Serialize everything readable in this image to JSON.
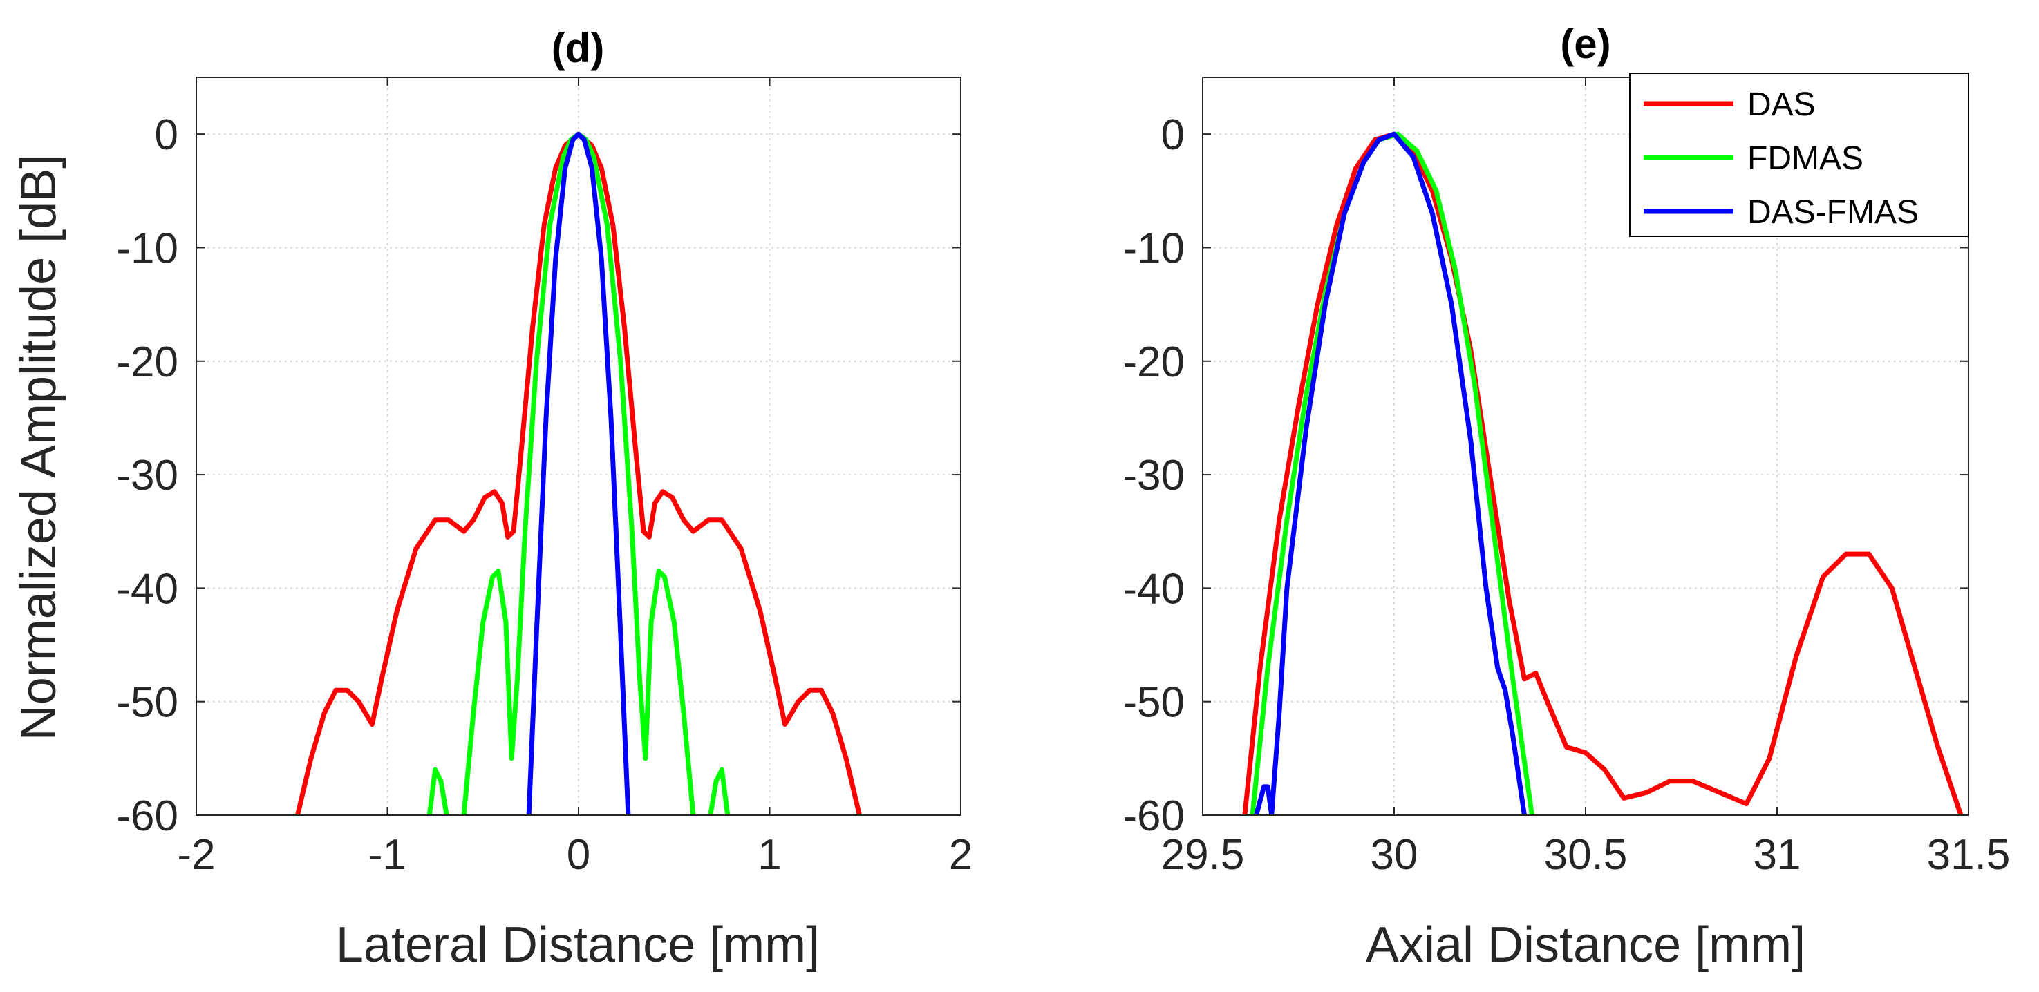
{
  "chart_data": [
    {
      "type": "line",
      "title": "(d)",
      "xlabel": "Lateral Distance [mm]",
      "ylabel": "Normalized Amplitude [dB]",
      "xlim": [
        -2,
        2
      ],
      "ylim": [
        -60,
        5
      ],
      "xticks": [
        -2,
        -1,
        0,
        1,
        2
      ],
      "yticks": [
        0,
        -10,
        -20,
        -30,
        -40,
        -50,
        -60
      ],
      "grid": true,
      "legend": null,
      "series": [
        {
          "name": "DAS",
          "color": "#ff0000",
          "x": [
            -1.47,
            -1.4,
            -1.33,
            -1.27,
            -1.21,
            -1.15,
            -1.08,
            -1.03,
            -0.95,
            -0.85,
            -0.75,
            -0.68,
            -0.6,
            -0.55,
            -0.49,
            -0.44,
            -0.4,
            -0.37,
            -0.34,
            -0.3,
            -0.24,
            -0.18,
            -0.12,
            -0.07,
            0,
            0.07,
            0.12,
            0.18,
            0.24,
            0.3,
            0.34,
            0.37,
            0.4,
            0.44,
            0.49,
            0.55,
            0.6,
            0.68,
            0.75,
            0.85,
            0.95,
            1.03,
            1.08,
            1.15,
            1.21,
            1.27,
            1.33,
            1.4,
            1.47
          ],
          "y": [
            -60,
            -55,
            -51,
            -49,
            -49,
            -50,
            -52,
            -48,
            -42,
            -36.5,
            -34,
            -34,
            -35,
            -34,
            -32,
            -31.5,
            -32.5,
            -35.5,
            -35,
            -28,
            -17,
            -8,
            -3,
            -1,
            0,
            -1,
            -3,
            -8,
            -17,
            -28,
            -35,
            -35.5,
            -32.5,
            -31.5,
            -32,
            -34,
            -35,
            -34,
            -34,
            -36.5,
            -42,
            -48,
            -52,
            -50,
            -49,
            -49,
            -51,
            -55,
            -60
          ]
        },
        {
          "name": "FDMAS",
          "color": "#00ff00",
          "segments": [
            {
              "x": [
                -0.78,
                -0.75,
                -0.72,
                -0.69
              ],
              "y": [
                -60,
                -56,
                -57,
                -60
              ]
            },
            {
              "x": [
                -0.6,
                -0.55,
                -0.5,
                -0.45,
                -0.42,
                -0.38,
                -0.35,
                -0.32,
                -0.28,
                -0.22,
                -0.15,
                -0.08,
                -0.04,
                0,
                0.04,
                0.08,
                0.15,
                0.22,
                0.28,
                0.32,
                0.35,
                0.38,
                0.42,
                0.45,
                0.5,
                0.55,
                0.6
              ],
              "y": [
                -60,
                -51,
                -43,
                -39,
                -38.5,
                -43,
                -55,
                -48,
                -35,
                -20,
                -8,
                -2,
                -0.5,
                0,
                -0.5,
                -2,
                -8,
                -20,
                -35,
                -48,
                -55,
                -43,
                -38.5,
                -39,
                -43,
                -51,
                -60
              ]
            },
            {
              "x": [
                0.69,
                0.72,
                0.75,
                0.78
              ],
              "y": [
                -60,
                -57,
                -56,
                -60
              ]
            }
          ]
        },
        {
          "name": "DAS-FMAS",
          "color": "#0000ff",
          "x": [
            -0.26,
            -0.22,
            -0.17,
            -0.12,
            -0.07,
            -0.03,
            0,
            0.03,
            0.07,
            0.12,
            0.17,
            0.22,
            0.26
          ],
          "y": [
            -60,
            -44,
            -25,
            -11,
            -3,
            -0.5,
            0,
            -0.5,
            -3,
            -11,
            -25,
            -44,
            -60
          ]
        }
      ]
    },
    {
      "type": "line",
      "title": "(e)",
      "xlabel": "Axial Distance [mm]",
      "ylabel": "",
      "xlim": [
        29.5,
        31.5
      ],
      "ylim": [
        -60,
        5
      ],
      "xticks": [
        29.5,
        30,
        30.5,
        31,
        31.5
      ],
      "yticks": [
        0,
        -10,
        -20,
        -30,
        -40,
        -50,
        -60
      ],
      "grid": true,
      "legend": "top-right",
      "series": [
        {
          "name": "DAS",
          "color": "#ff0000",
          "x": [
            29.61,
            29.65,
            29.7,
            29.75,
            29.8,
            29.85,
            29.9,
            29.95,
            30,
            30.05,
            30.1,
            30.15,
            30.2,
            30.25,
            30.3,
            30.34,
            30.37,
            30.4,
            30.45,
            30.5,
            30.55,
            30.6,
            30.66,
            30.72,
            30.78,
            30.85,
            30.92,
            30.98,
            31.05,
            31.12,
            31.18,
            31.24,
            31.3,
            31.36,
            31.42,
            31.48
          ],
          "y": [
            -60,
            -47,
            -34,
            -24,
            -15,
            -8,
            -3,
            -0.5,
            0,
            -1.5,
            -5,
            -11,
            -19,
            -30,
            -41,
            -48,
            -47.5,
            -50,
            -54,
            -54.5,
            -56,
            -58.5,
            -58,
            -57,
            -57,
            -58,
            -59,
            -55,
            -46,
            -39,
            -37,
            -37,
            -40,
            -47,
            -54,
            -60
          ]
        },
        {
          "name": "FDMAS",
          "color": "#00ff00",
          "x": [
            29.63,
            29.67,
            29.72,
            29.77,
            29.82,
            29.87,
            29.92,
            29.96,
            30.01,
            30.06,
            30.11,
            30.16,
            30.21,
            30.26,
            30.31,
            30.36
          ],
          "y": [
            -60,
            -47,
            -34,
            -23,
            -14,
            -7,
            -2.5,
            -0.5,
            0,
            -1.5,
            -5,
            -12,
            -22,
            -35,
            -48,
            -60
          ]
        },
        {
          "name": "DAS-FMAS",
          "color": "#0000ff",
          "x": [
            29.64,
            29.66,
            29.67,
            29.68,
            29.7,
            29.72,
            29.77,
            29.82,
            29.87,
            29.92,
            29.96,
            30,
            30.05,
            30.1,
            30.15,
            30.2,
            30.24,
            30.27,
            30.29,
            30.31,
            30.34
          ],
          "y": [
            -60,
            -57.5,
            -57.5,
            -60,
            -51,
            -40,
            -26,
            -15,
            -7,
            -2.5,
            -0.5,
            0,
            -2,
            -7,
            -15,
            -27,
            -40,
            -47,
            -49,
            -53,
            -60
          ]
        }
      ]
    }
  ]
}
